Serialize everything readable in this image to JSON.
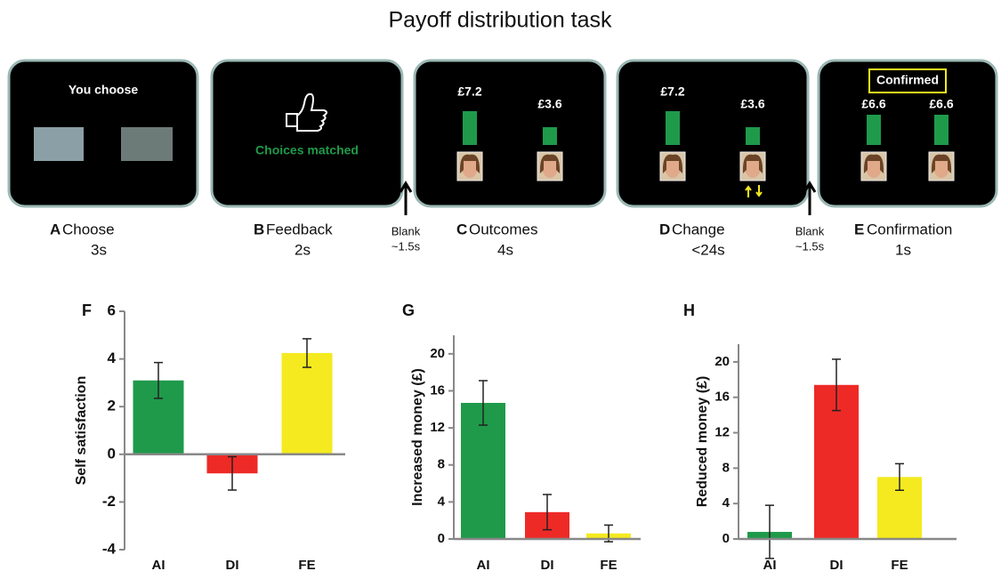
{
  "title": "Payoff distribution task",
  "screens": [
    {
      "letter": "A",
      "name": "Choose",
      "duration": "3s",
      "texts": [
        "You choose"
      ]
    },
    {
      "letter": "B",
      "name": "Feedback",
      "duration": "2s",
      "texts": [
        "Choices matched"
      ]
    },
    {
      "letter": "C",
      "name": "Outcomes",
      "duration": "4s",
      "texts": [
        "£7.2",
        "£3.6"
      ]
    },
    {
      "letter": "D",
      "name": "Change",
      "duration": "<24s",
      "texts": [
        "£7.2",
        "£3.6"
      ]
    },
    {
      "letter": "E",
      "name": "Confirmation",
      "duration": "1s",
      "texts": [
        "Confirmed",
        "£6.6",
        "£6.6"
      ]
    }
  ],
  "blanks": [
    {
      "label": "Blank",
      "duration": "~1.5s"
    },
    {
      "label": "Blank",
      "duration": "~1.5s"
    }
  ],
  "chart_data": [
    {
      "type": "bar",
      "label": "F",
      "ylabel": "Self satisfaction",
      "categories": [
        "AI",
        "DI",
        "FE"
      ],
      "values": [
        3.1,
        -0.8,
        4.25
      ],
      "errors": [
        0.75,
        0.7,
        0.6
      ],
      "colors": [
        "#1f9a4a",
        "#ee2a27",
        "#f4ea1f"
      ],
      "ylim": [
        -4,
        6
      ],
      "yticks": [
        -4,
        -2,
        0,
        2,
        4,
        6
      ]
    },
    {
      "type": "bar",
      "label": "G",
      "ylabel": "Increased money (£)",
      "categories": [
        "AI",
        "DI",
        "FE"
      ],
      "values": [
        14.7,
        2.9,
        0.6
      ],
      "errors": [
        2.4,
        1.9,
        0.9
      ],
      "colors": [
        "#1f9a4a",
        "#ee2a27",
        "#f4ea1f"
      ],
      "ylim": [
        0,
        22
      ],
      "yticks": [
        0,
        4,
        8,
        12,
        16,
        20
      ]
    },
    {
      "type": "bar",
      "label": "H",
      "ylabel": "Reduced money (£)",
      "categories": [
        "AI",
        "DI",
        "FE"
      ],
      "values": [
        0.8,
        17.4,
        7
      ],
      "errors": [
        3.0,
        2.9,
        1.5
      ],
      "colors": [
        "#1f9a4a",
        "#ee2a27",
        "#f4ea1f"
      ],
      "ylim": [
        0,
        22
      ],
      "yticks": [
        0,
        4,
        8,
        12,
        16,
        20
      ]
    }
  ]
}
